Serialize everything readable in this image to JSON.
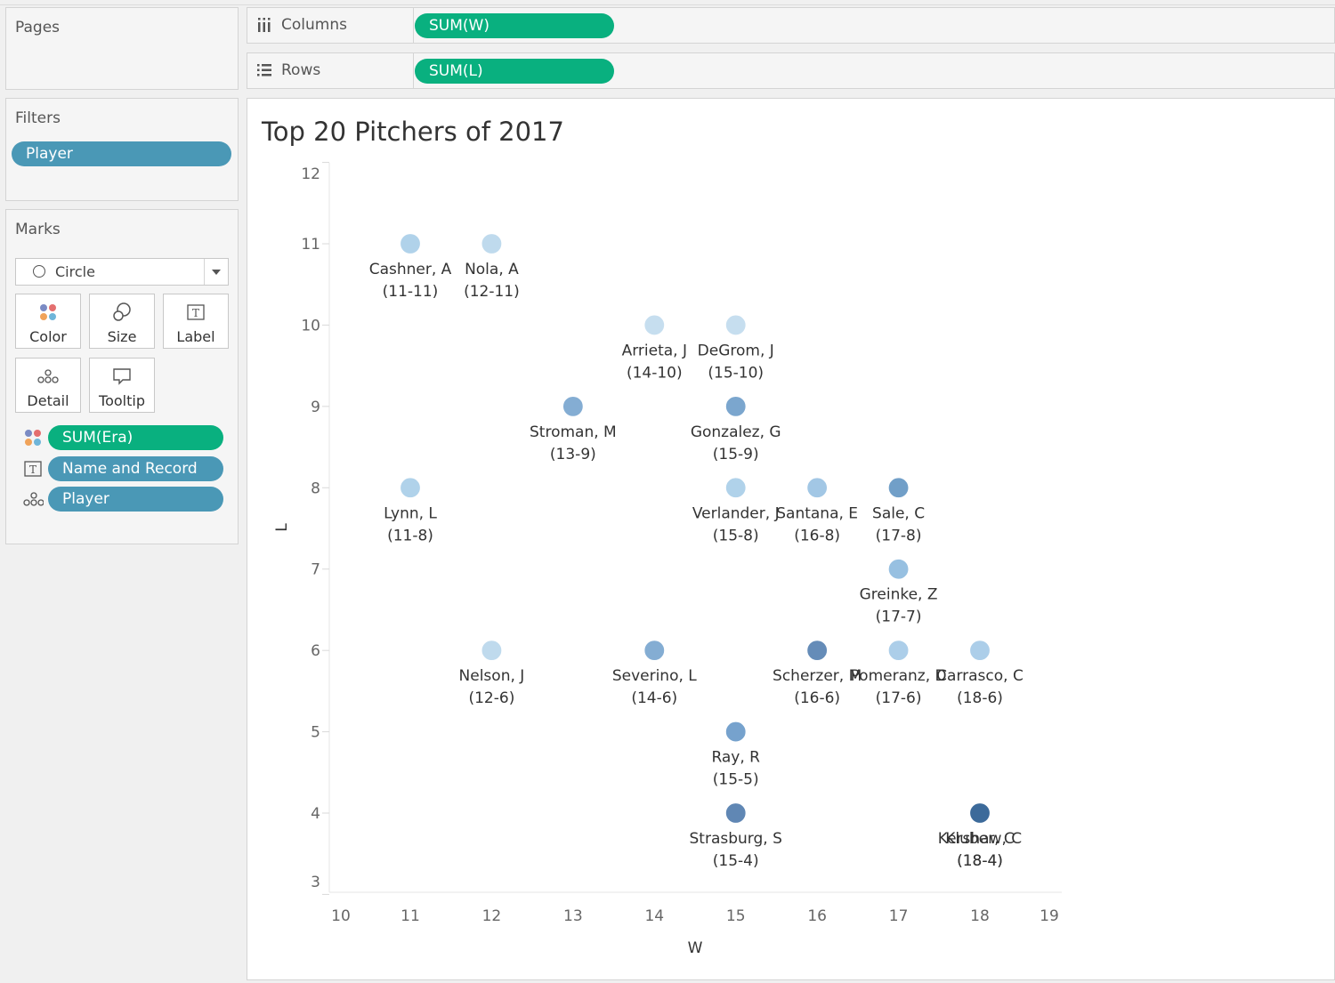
{
  "pages": {
    "title": "Pages"
  },
  "filters": {
    "title": "Filters",
    "pills": [
      "Player"
    ]
  },
  "marks": {
    "title": "Marks",
    "mark_type": "Circle",
    "buttons": [
      "Color",
      "Size",
      "Label",
      "Detail",
      "Tooltip"
    ],
    "encodings": [
      {
        "icon": "color-dots-icon",
        "field": "SUM(Era)",
        "color": "#09b07f"
      },
      {
        "icon": "label-t-icon",
        "field": "Name and Record",
        "color": "#4a98b6"
      },
      {
        "icon": "detail-dots-icon",
        "field": "Player",
        "color": "#4a98b6"
      }
    ]
  },
  "shelves": {
    "columns": {
      "label": "Columns",
      "pill": "SUM(W)"
    },
    "rows": {
      "label": "Rows",
      "pill": "SUM(L)"
    }
  },
  "colors": {
    "green_pill": "#09b07f",
    "blue_pill": "#4a98b6"
  },
  "chart_data": {
    "type": "scatter",
    "title": "Top 20 Pitchers of 2017",
    "xlabel": "W",
    "ylabel": "L",
    "xlim": [
      10,
      19
    ],
    "ylim": [
      3,
      12
    ],
    "x_ticks": [
      10,
      11,
      12,
      13,
      14,
      15,
      16,
      17,
      18,
      19
    ],
    "y_ticks": [
      3,
      4,
      5,
      6,
      7,
      8,
      9,
      10,
      11,
      12
    ],
    "color_encoding": "SUM(Era)",
    "points": [
      {
        "name": "Cashner, A",
        "record": "(11-11)",
        "x": 11,
        "y": 11,
        "color": "#acd0e9"
      },
      {
        "name": "Nola, A",
        "record": "(12-11)",
        "x": 12,
        "y": 11,
        "color": "#bcd9ed"
      },
      {
        "name": "Arrieta, J",
        "record": "(14-10)",
        "x": 14,
        "y": 10,
        "color": "#c3ddef"
      },
      {
        "name": "DeGrom, J",
        "record": "(15-10)",
        "x": 15,
        "y": 10,
        "color": "#c3ddef"
      },
      {
        "name": "Stroman, M",
        "record": "(13-9)",
        "x": 13,
        "y": 9,
        "color": "#7ea9d1"
      },
      {
        "name": "Gonzalez, G",
        "record": "(15-9)",
        "x": 15,
        "y": 9,
        "color": "#74a2cc"
      },
      {
        "name": "Lynn, L",
        "record": "(11-8)",
        "x": 11,
        "y": 8,
        "color": "#acd0e9"
      },
      {
        "name": "Verlander, J",
        "record": "(15-8)",
        "x": 15,
        "y": 8,
        "color": "#acd0e9"
      },
      {
        "name": "Santana, E",
        "record": "(16-8)",
        "x": 16,
        "y": 8,
        "color": "#9ec5e4"
      },
      {
        "name": "Sale, C",
        "record": "(17-8)",
        "x": 17,
        "y": 8,
        "color": "#6a9ac6"
      },
      {
        "name": "Greinke, Z",
        "record": "(17-7)",
        "x": 17,
        "y": 7,
        "color": "#92bde0"
      },
      {
        "name": "Nelson, J",
        "record": "(12-6)",
        "x": 12,
        "y": 6,
        "color": "#bcd9ed"
      },
      {
        "name": "Severino, L",
        "record": "(14-6)",
        "x": 14,
        "y": 6,
        "color": "#7ea9d1"
      },
      {
        "name": "Scherzer, M",
        "record": "(16-6)",
        "x": 16,
        "y": 6,
        "color": "#5d86b5"
      },
      {
        "name": "Pomeranz, D",
        "record": "(17-6)",
        "x": 17,
        "y": 6,
        "color": "#a8cce8"
      },
      {
        "name": "Carrasco, C",
        "record": "(18-6)",
        "x": 18,
        "y": 6,
        "color": "#a8cce8"
      },
      {
        "name": "Ray, R",
        "record": "(15-5)",
        "x": 15,
        "y": 5,
        "color": "#6f9ecb"
      },
      {
        "name": "Strasburg, S",
        "record": "(15-4)",
        "x": 15,
        "y": 4,
        "color": "#5881b0"
      },
      {
        "name": "Kershaw, C",
        "record": "(18-4)",
        "x": 18,
        "y": 4,
        "color": "#3c6a9a"
      },
      {
        "name": "Kluber, C",
        "record": "(18-4)",
        "x": 18,
        "y": 4,
        "color": "#3c6a9a"
      }
    ]
  }
}
